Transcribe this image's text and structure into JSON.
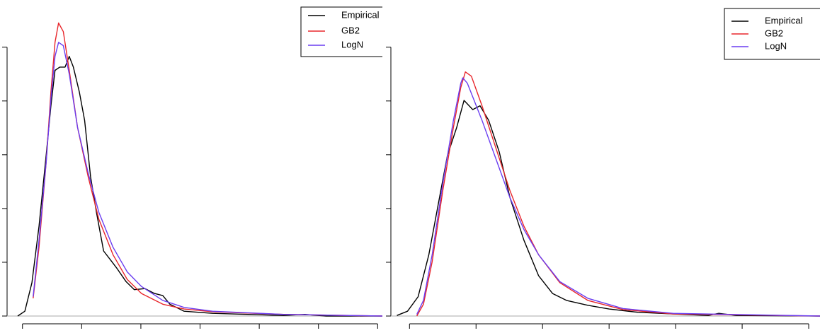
{
  "chart_data": [
    {
      "type": "line",
      "xlim": [
        -0.26,
        6.08
      ],
      "ylim": [
        0,
        5.72
      ],
      "xticks": [
        0,
        1,
        2,
        3,
        4,
        5,
        6
      ],
      "yticks": [
        0,
        1,
        2,
        3,
        4,
        5
      ],
      "legend": "top-right",
      "series": [
        {
          "name": "Empirical",
          "color": "#000000",
          "x": [
            -0.08,
            0.04,
            0.16,
            0.28,
            0.4,
            0.48,
            0.55,
            0.63,
            0.72,
            0.79,
            0.86,
            0.96,
            1.05,
            1.15,
            1.25,
            1.37,
            1.49,
            1.6,
            1.75,
            1.89,
            2.07,
            2.23,
            2.37,
            2.49,
            2.73,
            3.21,
            3.81,
            4.41,
            4.77,
            5.13,
            6.08
          ],
          "values": [
            0,
            0.09,
            0.62,
            1.67,
            2.99,
            3.91,
            4.57,
            4.63,
            4.63,
            4.83,
            4.63,
            4.17,
            3.64,
            2.59,
            1.93,
            1.21,
            1.04,
            0.88,
            0.64,
            0.49,
            0.51,
            0.42,
            0.38,
            0.22,
            0.09,
            0.05,
            0.03,
            0.01,
            0.03,
            0,
            0
          ]
        },
        {
          "name": "GB2",
          "color": "#e8262b",
          "x": [
            0.18,
            0.28,
            0.4,
            0.48,
            0.55,
            0.61,
            0.69,
            0.79,
            0.93,
            1.11,
            1.29,
            1.53,
            1.77,
            2.01,
            2.37,
            2.73,
            3.21,
            4.41,
            6.08
          ],
          "values": [
            0.33,
            1.28,
            2.86,
            4.17,
            5.09,
            5.45,
            5.29,
            4.57,
            3.51,
            2.59,
            1.8,
            1.14,
            0.68,
            0.42,
            0.22,
            0.13,
            0.08,
            0.03,
            0
          ]
        },
        {
          "name": "LogN",
          "color": "#6a3df0",
          "x": [
            0.18,
            0.28,
            0.4,
            0.48,
            0.55,
            0.61,
            0.69,
            0.79,
            0.93,
            1.11,
            1.29,
            1.53,
            1.77,
            2.01,
            2.37,
            2.73,
            3.21,
            4.41,
            6.08
          ],
          "values": [
            0.36,
            1.41,
            2.86,
            4.04,
            4.83,
            5.09,
            5.03,
            4.5,
            3.51,
            2.66,
            1.93,
            1.28,
            0.82,
            0.55,
            0.29,
            0.16,
            0.09,
            0.03,
            0
          ]
        }
      ]
    },
    {
      "type": "line",
      "xlim": [
        -0.28,
        6.17
      ],
      "ylim": [
        0,
        5.72
      ],
      "xticks": [
        0,
        1,
        2,
        3,
        4,
        5,
        6
      ],
      "yticks": [
        0,
        1,
        2,
        3,
        4,
        5
      ],
      "legend": "top-right",
      "series": [
        {
          "name": "Empirical",
          "color": "#000000",
          "x": [
            -0.19,
            -0.03,
            0.13,
            0.29,
            0.45,
            0.57,
            0.71,
            0.82,
            0.95,
            1.06,
            1.19,
            1.35,
            1.51,
            1.72,
            1.94,
            2.15,
            2.36,
            2.68,
            3.0,
            3.43,
            3.96,
            4.49,
            4.65,
            4.91,
            6.17
          ],
          "values": [
            0.01,
            0.09,
            0.36,
            1.14,
            2.2,
            2.99,
            3.51,
            4.01,
            3.84,
            3.91,
            3.64,
            3.05,
            2.2,
            1.41,
            0.75,
            0.42,
            0.29,
            0.2,
            0.13,
            0.07,
            0.04,
            0.01,
            0.05,
            0.01,
            0
          ]
        },
        {
          "name": "GB2",
          "color": "#e8262b",
          "x": [
            0.11,
            0.21,
            0.34,
            0.5,
            0.66,
            0.77,
            0.84,
            0.93,
            1.09,
            1.3,
            1.51,
            1.72,
            1.94,
            2.26,
            2.68,
            3.21,
            3.96,
            6.17
          ],
          "values": [
            0,
            0.22,
            1.01,
            2.33,
            3.51,
            4.25,
            4.54,
            4.46,
            3.91,
            3.12,
            2.33,
            1.67,
            1.14,
            0.62,
            0.29,
            0.12,
            0.04,
            0
          ]
        },
        {
          "name": "LogN",
          "color": "#6a3df0",
          "x": [
            0.11,
            0.21,
            0.34,
            0.5,
            0.66,
            0.77,
            0.8,
            0.87,
            1.09,
            1.3,
            1.51,
            1.72,
            1.94,
            2.26,
            2.68,
            3.21,
            3.96,
            6.17
          ],
          "values": [
            0.03,
            0.29,
            1.14,
            2.46,
            3.64,
            4.33,
            4.43,
            4.33,
            3.64,
            2.92,
            2.2,
            1.61,
            1.14,
            0.64,
            0.33,
            0.14,
            0.05,
            0
          ]
        }
      ]
    }
  ]
}
